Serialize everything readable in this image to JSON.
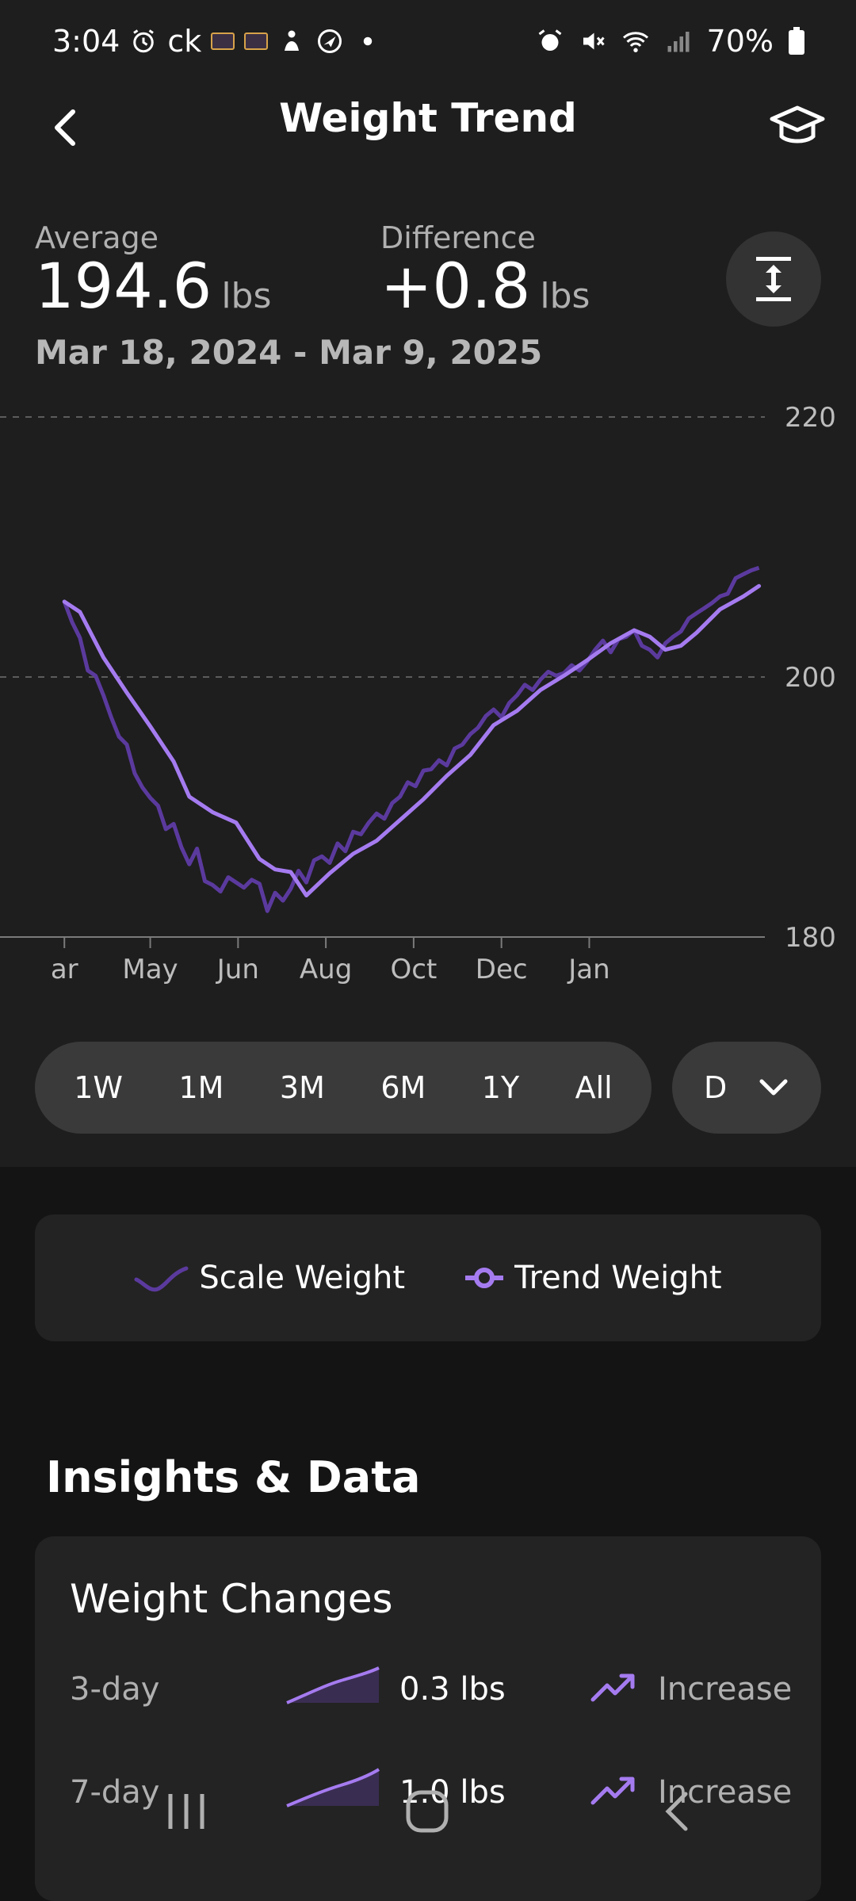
{
  "status_bar": {
    "time": "3:04",
    "carrier": "ck",
    "battery": "70%"
  },
  "header": {
    "title": "Weight Trend",
    "back_icon": "chevron-left-icon",
    "learn_icon": "graduation-cap-icon"
  },
  "stats": {
    "average_label": "Average",
    "average_value": "194.6",
    "average_unit": "lbs",
    "difference_label": "Difference",
    "difference_value": "+0.8",
    "difference_unit": "lbs",
    "date_range": "Mar 18, 2024 - Mar 9, 2025"
  },
  "chart_data": {
    "type": "line",
    "ylim": [
      180,
      220
    ],
    "y_ticks": [
      "220",
      "200",
      "180"
    ],
    "x_tick_labels": [
      "ar",
      "May",
      "Jun",
      "Aug",
      "Oct",
      "Dec",
      "Jan"
    ],
    "grid": "dashed horizontal at 220 and 200",
    "series": [
      {
        "name": "Scale Weight",
        "color": "#5b3a9e",
        "x": [
          "2024-03-18",
          "2024-03-22",
          "2024-03-26",
          "2024-03-30",
          "2024-04-03",
          "2024-04-07",
          "2024-04-11",
          "2024-04-15",
          "2024-04-19",
          "2024-04-23",
          "2024-04-27",
          "2024-05-01",
          "2024-05-05",
          "2024-05-09",
          "2024-05-13",
          "2024-05-17",
          "2024-05-21",
          "2024-05-25",
          "2024-05-29",
          "2024-06-02",
          "2024-06-06",
          "2024-06-10",
          "2024-06-14",
          "2024-06-18",
          "2024-06-22",
          "2024-06-26",
          "2024-06-30",
          "2024-07-04",
          "2024-07-08",
          "2024-07-12",
          "2024-07-16",
          "2024-07-20",
          "2024-07-24",
          "2024-07-28",
          "2024-08-01",
          "2024-08-05",
          "2024-08-09",
          "2024-08-13",
          "2024-08-17",
          "2024-08-21",
          "2024-08-25",
          "2024-08-29",
          "2024-09-02",
          "2024-09-06",
          "2024-09-10",
          "2024-09-14",
          "2024-09-18",
          "2024-09-22",
          "2024-09-26",
          "2024-09-30",
          "2024-10-04",
          "2024-10-08",
          "2024-10-12",
          "2024-10-16",
          "2024-10-20",
          "2024-10-24",
          "2024-10-28",
          "2024-11-01",
          "2024-11-05",
          "2024-11-09",
          "2024-11-13",
          "2024-11-17",
          "2024-11-21",
          "2024-11-25",
          "2024-11-29",
          "2024-12-03",
          "2024-12-07",
          "2024-12-11",
          "2024-12-15",
          "2024-12-19",
          "2024-12-23",
          "2024-12-27",
          "2024-12-31",
          "2025-01-04",
          "2025-01-08",
          "2025-01-12",
          "2025-01-16",
          "2025-01-20",
          "2025-01-24",
          "2025-01-28",
          "2025-02-01",
          "2025-02-05",
          "2025-02-09",
          "2025-02-13",
          "2025-02-17",
          "2025-02-21",
          "2025-02-25",
          "2025-03-01",
          "2025-03-05",
          "2025-03-09"
        ],
        "values": [
          205.8,
          204.2,
          203.0,
          200.5,
          200.1,
          198.6,
          196.9,
          195.4,
          194.8,
          192.6,
          191.5,
          190.7,
          190.1,
          188.3,
          188.7,
          186.9,
          185.6,
          186.8,
          184.3,
          184.0,
          183.5,
          184.6,
          184.2,
          183.8,
          184.4,
          184.1,
          182.0,
          183.4,
          182.8,
          183.7,
          185.1,
          184.2,
          185.9,
          186.2,
          185.7,
          187.2,
          186.6,
          188.1,
          187.9,
          188.8,
          189.5,
          189.1,
          190.3,
          190.8,
          191.9,
          191.6,
          192.8,
          192.9,
          193.6,
          193.2,
          194.5,
          194.8,
          195.6,
          196.1,
          197.0,
          197.5,
          196.9,
          198.0,
          198.6,
          199.4,
          199.0,
          199.8,
          200.4,
          200.1,
          200.3,
          200.9,
          200.5,
          201.2,
          202.1,
          202.8,
          201.9,
          202.9,
          203.1,
          203.6,
          202.4,
          202.1,
          201.5,
          202.6,
          203.1,
          203.5,
          204.5,
          204.9,
          205.3,
          205.7,
          206.2,
          206.4,
          207.6,
          207.9,
          208.2,
          208.4
        ]
      },
      {
        "name": "Trend Weight",
        "color": "#a57bf0",
        "x": [
          "2024-03-18",
          "2024-03-26",
          "2024-04-07",
          "2024-04-19",
          "2024-05-01",
          "2024-05-13",
          "2024-05-21",
          "2024-06-02",
          "2024-06-14",
          "2024-06-26",
          "2024-07-04",
          "2024-07-12",
          "2024-07-20",
          "2024-08-01",
          "2024-08-13",
          "2024-08-25",
          "2024-09-06",
          "2024-09-18",
          "2024-09-30",
          "2024-10-12",
          "2024-10-24",
          "2024-11-05",
          "2024-11-17",
          "2024-11-29",
          "2024-12-11",
          "2024-12-23",
          "2025-01-04",
          "2025-01-12",
          "2025-01-20",
          "2025-01-28",
          "2025-02-05",
          "2025-02-17",
          "2025-03-01",
          "2025-03-09"
        ],
        "values": [
          205.8,
          205.0,
          201.5,
          198.8,
          196.2,
          193.5,
          190.8,
          189.6,
          188.8,
          186.0,
          185.2,
          185.0,
          183.2,
          184.9,
          186.4,
          187.4,
          189.0,
          190.6,
          192.4,
          194.0,
          196.3,
          197.4,
          199.0,
          200.1,
          201.3,
          202.6,
          203.6,
          203.1,
          202.1,
          202.4,
          203.4,
          205.2,
          206.2,
          207.0
        ]
      }
    ]
  },
  "ranges": [
    "1W",
    "1M",
    "3M",
    "6M",
    "1Y",
    "All"
  ],
  "period_select": {
    "value": "D"
  },
  "legend": {
    "scale_label": "Scale Weight",
    "trend_label": "Trend Weight"
  },
  "insights": {
    "title": "Insights & Data",
    "card_title": "Weight Changes",
    "rows": [
      {
        "period": "3-day",
        "value": "0.3 lbs",
        "direction": "Increase"
      },
      {
        "period": "7-day",
        "value": "1.0 lbs",
        "direction": "Increase"
      }
    ]
  },
  "colors": {
    "accent": "#a57bf0",
    "scale_line": "#5b3a9e",
    "background": "#1e1e1e"
  }
}
